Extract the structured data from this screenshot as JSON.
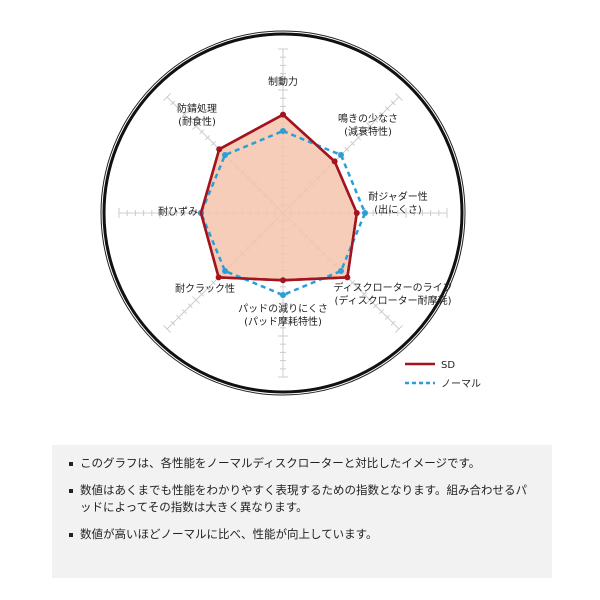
{
  "chart_data": {
    "type": "radar",
    "categories": [
      [
        "制動力"
      ],
      [
        "鳴きの少なさ",
        "(減衰特性)"
      ],
      [
        "耐ジャダー性",
        "(出にくさ)"
      ],
      [
        "ディスクローターのライフ",
        "(ディスクローター耐摩耗)"
      ],
      [
        "パッドの減りにくさ",
        "(パッド摩耗特性)"
      ],
      [
        "耐クラック性"
      ],
      [
        "耐ひずみ"
      ],
      [
        "防錆処理",
        "(耐食性)"
      ]
    ],
    "range": [
      0,
      200
    ],
    "series": [
      {
        "name": "SD",
        "values": [
          120,
          89,
          90,
          111,
          82,
          111,
          100,
          110
        ],
        "color": "#a3141e",
        "style": "solid",
        "fill": "#f4c4ad"
      },
      {
        "name": "ノーマル",
        "values": [
          100,
          100,
          100,
          100,
          100,
          100,
          100,
          100
        ],
        "color": "#2a9fd6",
        "style": "dashed"
      }
    ],
    "legend": "bottom-right"
  },
  "notes": [
    "このグラフは、各性能をノーマルディスクローターと対比したイメージです。",
    "数値はあくまでも性能をわかりやすく表現するための指数となります。組み合わせるパッドによってその指数は大きく異なります。",
    "数値が高いほどノーマルに比べ、性能が向上しています。"
  ]
}
